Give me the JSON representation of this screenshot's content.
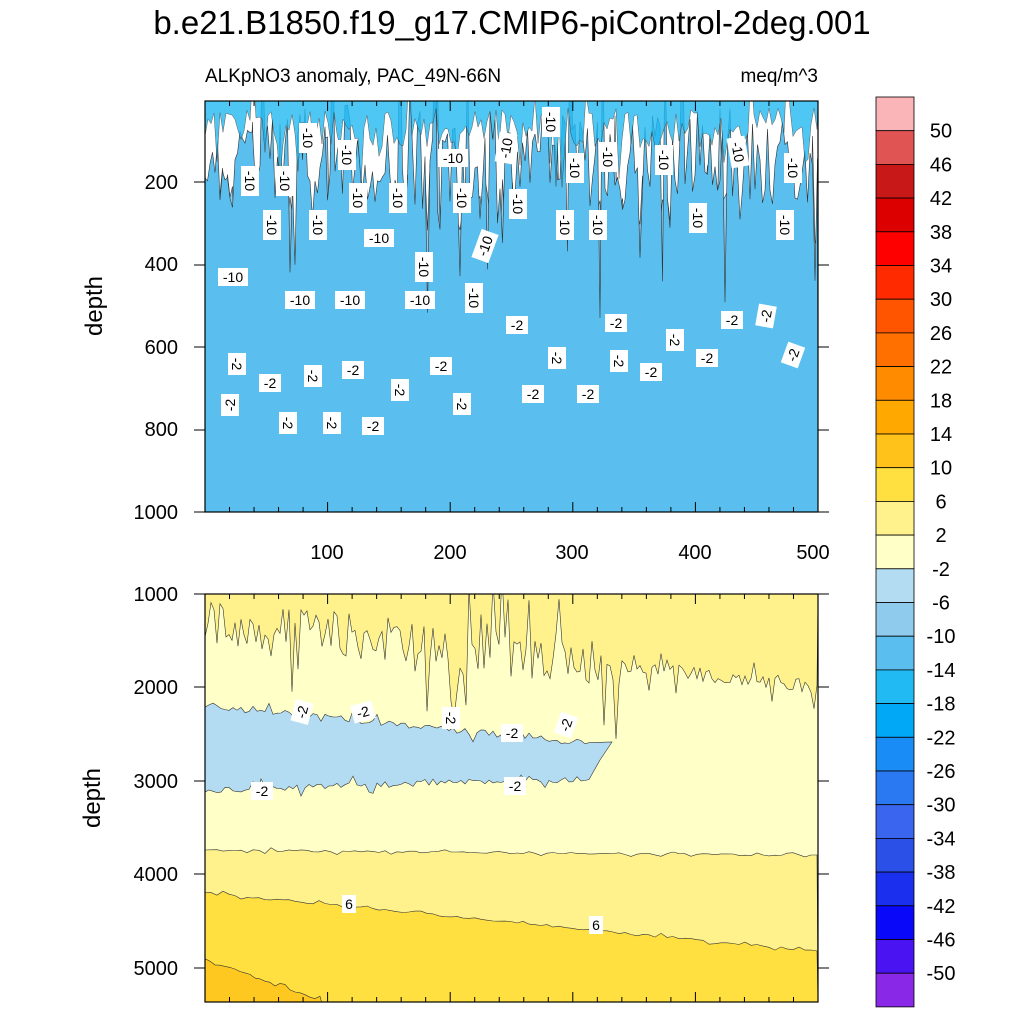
{
  "chart_data": {
    "type": "heatmap",
    "title": "b.e21.B1850.f19_g17.CMIP6-piControl-2deg.001",
    "subtitle_left": "ALKpNO3 anomaly, PAC_49N-66N",
    "subtitle_right": "meq/m^3",
    "ylabel": "depth",
    "xlim": [
      0,
      500
    ],
    "x_ticks": [
      "100",
      "200",
      "300",
      "400",
      "500"
    ],
    "colorbar": {
      "levels": [
        "50",
        "46",
        "42",
        "38",
        "34",
        "30",
        "26",
        "22",
        "18",
        "14",
        "10",
        "6",
        "2",
        "-2",
        "-6",
        "-10",
        "-14",
        "-18",
        "-22",
        "-26",
        "-30",
        "-34",
        "-38",
        "-42",
        "-46",
        "-50"
      ],
      "colors": [
        "#f9b5b8",
        "#e05454",
        "#c81818",
        "#dc0000",
        "#ff0000",
        "#ff2a00",
        "#ff5500",
        "#ff7000",
        "#ff8c00",
        "#ffa800",
        "#ffc21a",
        "#ffe040",
        "#fff28c",
        "#ffffc8",
        "#b3dcf2",
        "#8ecbec",
        "#5abfee",
        "#22baf3",
        "#00a8f5",
        "#1a8cf5",
        "#2a78f2",
        "#3a66ef",
        "#2a50e8",
        "#1a30ee",
        "#0a08f8",
        "#4a14f2",
        "#8a28e8"
      ]
    },
    "panels": [
      {
        "name": "upper",
        "ylim": [
          0,
          1000
        ],
        "y_ticks": [
          "200",
          "400",
          "600",
          "800",
          "1000"
        ],
        "contour_labels": [
          "-10",
          "-10",
          "-10",
          "-10",
          "-10",
          "-10",
          "-10",
          "-10",
          "-10",
          "-10",
          "-10",
          "-10",
          "-10",
          "-10",
          "-10",
          "-10",
          "-10",
          "-10",
          "-10",
          "-10",
          "-10",
          "-10",
          "-10",
          "-10",
          "-10",
          "-10",
          "-10",
          "-10",
          "-10",
          "-10",
          "-2",
          "-2",
          "-2",
          "-2",
          "-2",
          "-2",
          "-2",
          "-2",
          "-2",
          "-2",
          "-2",
          "-2",
          "-2",
          "-2",
          "-2",
          "-2",
          "-2",
          "-2",
          "-2",
          "-2",
          "-2",
          "-2",
          "-2"
        ]
      },
      {
        "name": "lower",
        "ylim": [
          1000,
          5375
        ],
        "y_ticks": [
          "1000",
          "2000",
          "3000",
          "4000",
          "5000"
        ],
        "contour_labels": [
          "-2",
          "-2",
          "-2",
          "-2",
          "-2",
          "-2",
          "-2",
          "6",
          "6"
        ]
      }
    ]
  }
}
